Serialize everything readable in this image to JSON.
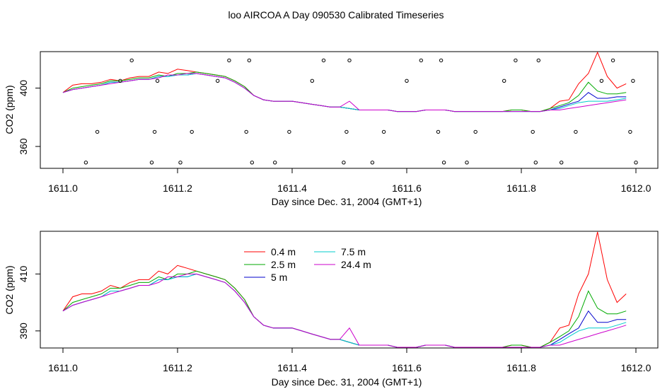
{
  "title": "loo AIRCOA A  Day 090530  Calibrated Timeseries",
  "chart_data": [
    {
      "type": "line",
      "xlabel": "Day since Dec. 31, 2004 (GMT+1)",
      "ylabel": "CO2 (ppm)",
      "xlim": [
        1611.0,
        1612.0
      ],
      "ylim": [
        345,
        425
      ],
      "xticks": [
        "1611.0",
        "1611.2",
        "1611.4",
        "1611.6",
        "1611.8",
        "1612.0"
      ],
      "yticks": [
        "360",
        "400"
      ],
      "legend": "none",
      "x": [
        1611.0,
        1611.017,
        1611.033,
        1611.05,
        1611.067,
        1611.083,
        1611.1,
        1611.117,
        1611.133,
        1611.15,
        1611.167,
        1611.183,
        1611.2,
        1611.217,
        1611.233,
        1611.25,
        1611.267,
        1611.283,
        1611.3,
        1611.317,
        1611.333,
        1611.35,
        1611.367,
        1611.383,
        1611.4,
        1611.417,
        1611.433,
        1611.45,
        1611.467,
        1611.483,
        1611.5,
        1611.517,
        1611.533,
        1611.55,
        1611.567,
        1611.583,
        1611.6,
        1611.617,
        1611.633,
        1611.65,
        1611.667,
        1611.683,
        1611.7,
        1611.717,
        1611.733,
        1611.75,
        1611.767,
        1611.783,
        1611.8,
        1611.817,
        1611.833,
        1611.85,
        1611.867,
        1611.883,
        1611.9,
        1611.917,
        1611.933,
        1611.95,
        1611.967,
        1611.983
      ],
      "series": [
        {
          "color": "#ff0000",
          "values": [
            397,
            402,
            403,
            403,
            404,
            406,
            405,
            407,
            408,
            408,
            411,
            410,
            413,
            412,
            411,
            410,
            409,
            408,
            405,
            401,
            395,
            392,
            391,
            391,
            391,
            390,
            389,
            388,
            387,
            387,
            386,
            385,
            385,
            385,
            385,
            384,
            384,
            384,
            385,
            385,
            385,
            384,
            384,
            384,
            384,
            384,
            384,
            385,
            385,
            384,
            384,
            386,
            391,
            392,
            403,
            410,
            426,
            408,
            400,
            403
          ]
        },
        {
          "color": "#00aa00",
          "values": [
            397,
            400,
            401,
            402,
            403,
            405,
            405,
            406,
            407,
            407,
            409,
            408,
            410,
            410,
            411,
            410,
            409,
            408,
            405,
            401,
            395,
            392,
            391,
            391,
            391,
            390,
            389,
            388,
            387,
            387,
            386,
            385,
            385,
            385,
            385,
            384,
            384,
            384,
            385,
            385,
            385,
            384,
            384,
            384,
            384,
            384,
            384,
            385,
            385,
            384,
            384,
            386,
            388,
            390,
            395,
            404,
            398,
            396,
            396,
            397
          ]
        },
        {
          "color": "#0000cc",
          "values": [
            397,
            399,
            400,
            401,
            402,
            404,
            404,
            405,
            406,
            406,
            408,
            408,
            409,
            409,
            410,
            409,
            408,
            407,
            404,
            400,
            395,
            392,
            391,
            391,
            391,
            390,
            389,
            388,
            387,
            387,
            386,
            385,
            385,
            385,
            385,
            384,
            384,
            384,
            385,
            385,
            385,
            384,
            384,
            384,
            384,
            384,
            384,
            384,
            384,
            384,
            384,
            385,
            387,
            389,
            391,
            397,
            393,
            393,
            394,
            394
          ]
        },
        {
          "color": "#00cccc",
          "values": [
            397,
            399,
            400,
            401,
            402,
            404,
            404,
            405,
            406,
            406,
            408,
            408,
            409,
            409,
            410,
            409,
            408,
            407,
            404,
            400,
            395,
            392,
            391,
            391,
            391,
            390,
            389,
            388,
            387,
            387,
            386,
            385,
            385,
            385,
            385,
            384,
            384,
            384,
            385,
            385,
            385,
            384,
            384,
            384,
            384,
            384,
            384,
            384,
            384,
            384,
            384,
            385,
            386,
            388,
            390,
            391,
            391,
            391,
            392,
            393
          ]
        },
        {
          "color": "#cc00cc",
          "values": [
            397,
            399,
            400,
            401,
            402,
            403,
            404,
            405,
            406,
            406,
            407,
            409,
            409,
            410,
            410,
            409,
            408,
            407,
            404,
            400,
            395,
            392,
            391,
            391,
            391,
            390,
            389,
            388,
            387,
            387,
            391,
            385,
            385,
            385,
            385,
            384,
            384,
            384,
            385,
            385,
            385,
            384,
            384,
            384,
            384,
            384,
            384,
            384,
            384,
            384,
            384,
            385,
            385,
            386,
            387,
            388,
            389,
            390,
            391,
            392
          ]
        }
      ],
      "markers_x": [
        1611.04,
        1611.06,
        1611.1,
        1611.12,
        1611.155,
        1611.16,
        1611.165,
        1611.205,
        1611.225,
        1611.27,
        1611.29,
        1611.32,
        1611.325,
        1611.33,
        1611.37,
        1611.395,
        1611.435,
        1611.455,
        1611.49,
        1611.495,
        1611.5,
        1611.54,
        1611.56,
        1611.6,
        1611.625,
        1611.655,
        1611.66,
        1611.665,
        1611.705,
        1611.72,
        1611.77,
        1611.79,
        1611.82,
        1611.825,
        1611.83,
        1611.87,
        1611.895,
        1611.94,
        1611.96,
        1611.99,
        1611.995,
        1612.0
      ],
      "markers_y": [
        349,
        370,
        405,
        419,
        349,
        370,
        405,
        349,
        370,
        405,
        419,
        370,
        419,
        349,
        349,
        370,
        405,
        419,
        349,
        370,
        419,
        349,
        370,
        405,
        419,
        370,
        419,
        349,
        349,
        370,
        405,
        419,
        370,
        349,
        419,
        349,
        370,
        405,
        419,
        370,
        405,
        349
      ]
    },
    {
      "type": "line",
      "xlabel": "Day since Dec. 31, 2004 (GMT+1)",
      "ylabel": "CO2 (ppm)",
      "xlim": [
        1611.0,
        1612.0
      ],
      "ylim": [
        384,
        425
      ],
      "xticks": [
        "1611.0",
        "1611.2",
        "1611.4",
        "1611.6",
        "1611.8",
        "1612.0"
      ],
      "yticks": [
        "390",
        "410"
      ],
      "legend": "top-center",
      "x": [
        1611.0,
        1611.017,
        1611.033,
        1611.05,
        1611.067,
        1611.083,
        1611.1,
        1611.117,
        1611.133,
        1611.15,
        1611.167,
        1611.183,
        1611.2,
        1611.217,
        1611.233,
        1611.25,
        1611.267,
        1611.283,
        1611.3,
        1611.317,
        1611.333,
        1611.35,
        1611.367,
        1611.383,
        1611.4,
        1611.417,
        1611.433,
        1611.45,
        1611.467,
        1611.483,
        1611.5,
        1611.517,
        1611.533,
        1611.55,
        1611.567,
        1611.583,
        1611.6,
        1611.617,
        1611.633,
        1611.65,
        1611.667,
        1611.683,
        1611.7,
        1611.717,
        1611.733,
        1611.75,
        1611.767,
        1611.783,
        1611.8,
        1611.817,
        1611.833,
        1611.85,
        1611.867,
        1611.883,
        1611.9,
        1611.917,
        1611.933,
        1611.95,
        1611.967,
        1611.983
      ],
      "series": [
        {
          "name": "0.4 m",
          "color": "#ff0000",
          "values": [
            397,
            402,
            403,
            403,
            404,
            406,
            405,
            407,
            408,
            408,
            411,
            410,
            413,
            412,
            411,
            410,
            409,
            408,
            405,
            401,
            395,
            392,
            391,
            391,
            391,
            390,
            389,
            388,
            387,
            387,
            386,
            385,
            385,
            385,
            385,
            384,
            384,
            384,
            385,
            385,
            385,
            384,
            384,
            384,
            384,
            384,
            384,
            385,
            385,
            384,
            384,
            386,
            391,
            392,
            403,
            410,
            426,
            408,
            400,
            403
          ]
        },
        {
          "name": "2.5 m",
          "color": "#00aa00",
          "values": [
            397,
            400,
            401,
            402,
            403,
            405,
            405,
            406,
            407,
            407,
            409,
            408,
            410,
            410,
            411,
            410,
            409,
            408,
            405,
            401,
            395,
            392,
            391,
            391,
            391,
            390,
            389,
            388,
            387,
            387,
            386,
            385,
            385,
            385,
            385,
            384,
            384,
            384,
            385,
            385,
            385,
            384,
            384,
            384,
            384,
            384,
            384,
            385,
            385,
            384,
            384,
            386,
            388,
            390,
            395,
            404,
            398,
            396,
            396,
            397
          ]
        },
        {
          "name": "5 m",
          "color": "#0000cc",
          "values": [
            397,
            399,
            400,
            401,
            402,
            404,
            404,
            405,
            406,
            406,
            408,
            408,
            409,
            409,
            410,
            409,
            408,
            407,
            404,
            400,
            395,
            392,
            391,
            391,
            391,
            390,
            389,
            388,
            387,
            387,
            386,
            385,
            385,
            385,
            385,
            384,
            384,
            384,
            385,
            385,
            385,
            384,
            384,
            384,
            384,
            384,
            384,
            384,
            384,
            384,
            384,
            385,
            387,
            389,
            391,
            397,
            393,
            393,
            394,
            394
          ]
        },
        {
          "name": "7.5 m",
          "color": "#00cccc",
          "values": [
            397,
            399,
            400,
            401,
            402,
            404,
            404,
            405,
            406,
            406,
            408,
            408,
            409,
            409,
            410,
            409,
            408,
            407,
            404,
            400,
            395,
            392,
            391,
            391,
            391,
            390,
            389,
            388,
            387,
            387,
            386,
            385,
            385,
            385,
            385,
            384,
            384,
            384,
            385,
            385,
            385,
            384,
            384,
            384,
            384,
            384,
            384,
            384,
            384,
            384,
            384,
            385,
            386,
            388,
            390,
            391,
            391,
            391,
            392,
            393
          ]
        },
        {
          "name": "24.4 m",
          "color": "#cc00cc",
          "values": [
            397,
            399,
            400,
            401,
            402,
            403,
            404,
            405,
            406,
            406,
            407,
            409,
            409,
            410,
            410,
            409,
            408,
            407,
            404,
            400,
            395,
            392,
            391,
            391,
            391,
            390,
            389,
            388,
            387,
            387,
            391,
            385,
            385,
            385,
            385,
            384,
            384,
            384,
            385,
            385,
            385,
            384,
            384,
            384,
            384,
            384,
            384,
            384,
            384,
            384,
            384,
            385,
            385,
            386,
            387,
            388,
            389,
            390,
            391,
            392
          ]
        }
      ]
    }
  ]
}
